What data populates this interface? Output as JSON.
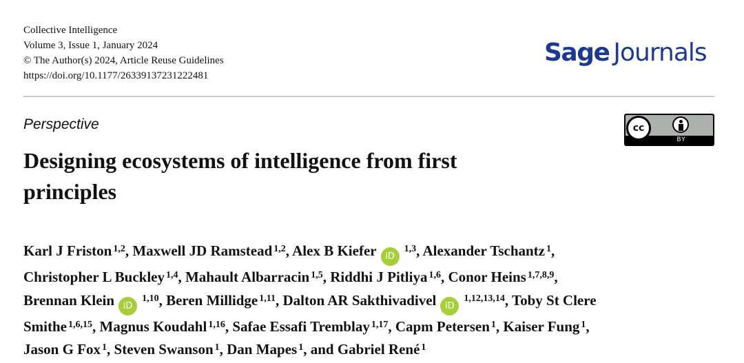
{
  "journal": {
    "name": "Collective Intelligence",
    "issue": "Volume 3, Issue 1, January 2024",
    "copyright": "© The Author(s) 2024, Article Reuse Guidelines",
    "doi": "https://doi.org/10.1177/26339137231222481",
    "publisher_logo": "Sage Journals"
  },
  "license": {
    "badge": "CC BY",
    "by_label": "BY",
    "cc_label": "cc"
  },
  "article_type": "Perspective",
  "title": "Designing ecosystems of intelligence from first principles",
  "colors": {
    "brand": "#1c3a93",
    "orcid": "#a6ce39"
  },
  "authors": [
    {
      "name": "Karl J Friston",
      "aff": "1,2"
    },
    {
      "name": "Maxwell JD Ramstead",
      "aff": "1,2"
    },
    {
      "name": "Alex B Kiefer",
      "aff": "1,3",
      "orcid": true
    },
    {
      "name": "Alexander Tschantz",
      "aff": "1"
    },
    {
      "name": "Christopher L Buckley",
      "aff": "1,4"
    },
    {
      "name": "Mahault Albarracin",
      "aff": "1,5"
    },
    {
      "name": "Riddhi J Pitliya",
      "aff": "1,6"
    },
    {
      "name": "Conor Heins",
      "aff": "1,7,8,9"
    },
    {
      "name": "Brennan Klein",
      "aff": "1,10",
      "orcid": true
    },
    {
      "name": "Beren Millidge",
      "aff": "1,11"
    },
    {
      "name": "Dalton AR Sakthivadivel",
      "aff": "1,12,13,14",
      "orcid": true
    },
    {
      "name": "Toby St Clere Smithe",
      "aff": "1,6,15"
    },
    {
      "name": "Magnus Koudahl",
      "aff": "1,16"
    },
    {
      "name": "Safae Essafi Tremblay",
      "aff": "1,17"
    },
    {
      "name": "Capm Petersen",
      "aff": "1"
    },
    {
      "name": "Kaiser Fung",
      "aff": "1"
    },
    {
      "name": "Jason G Fox",
      "aff": "1"
    },
    {
      "name": "Steven Swanson",
      "aff": "1"
    },
    {
      "name": "Dan Mapes",
      "aff": "1"
    },
    {
      "name": "Gabriel René",
      "aff": "1"
    }
  ],
  "conjunction": "and",
  "orcid_label": "iD"
}
